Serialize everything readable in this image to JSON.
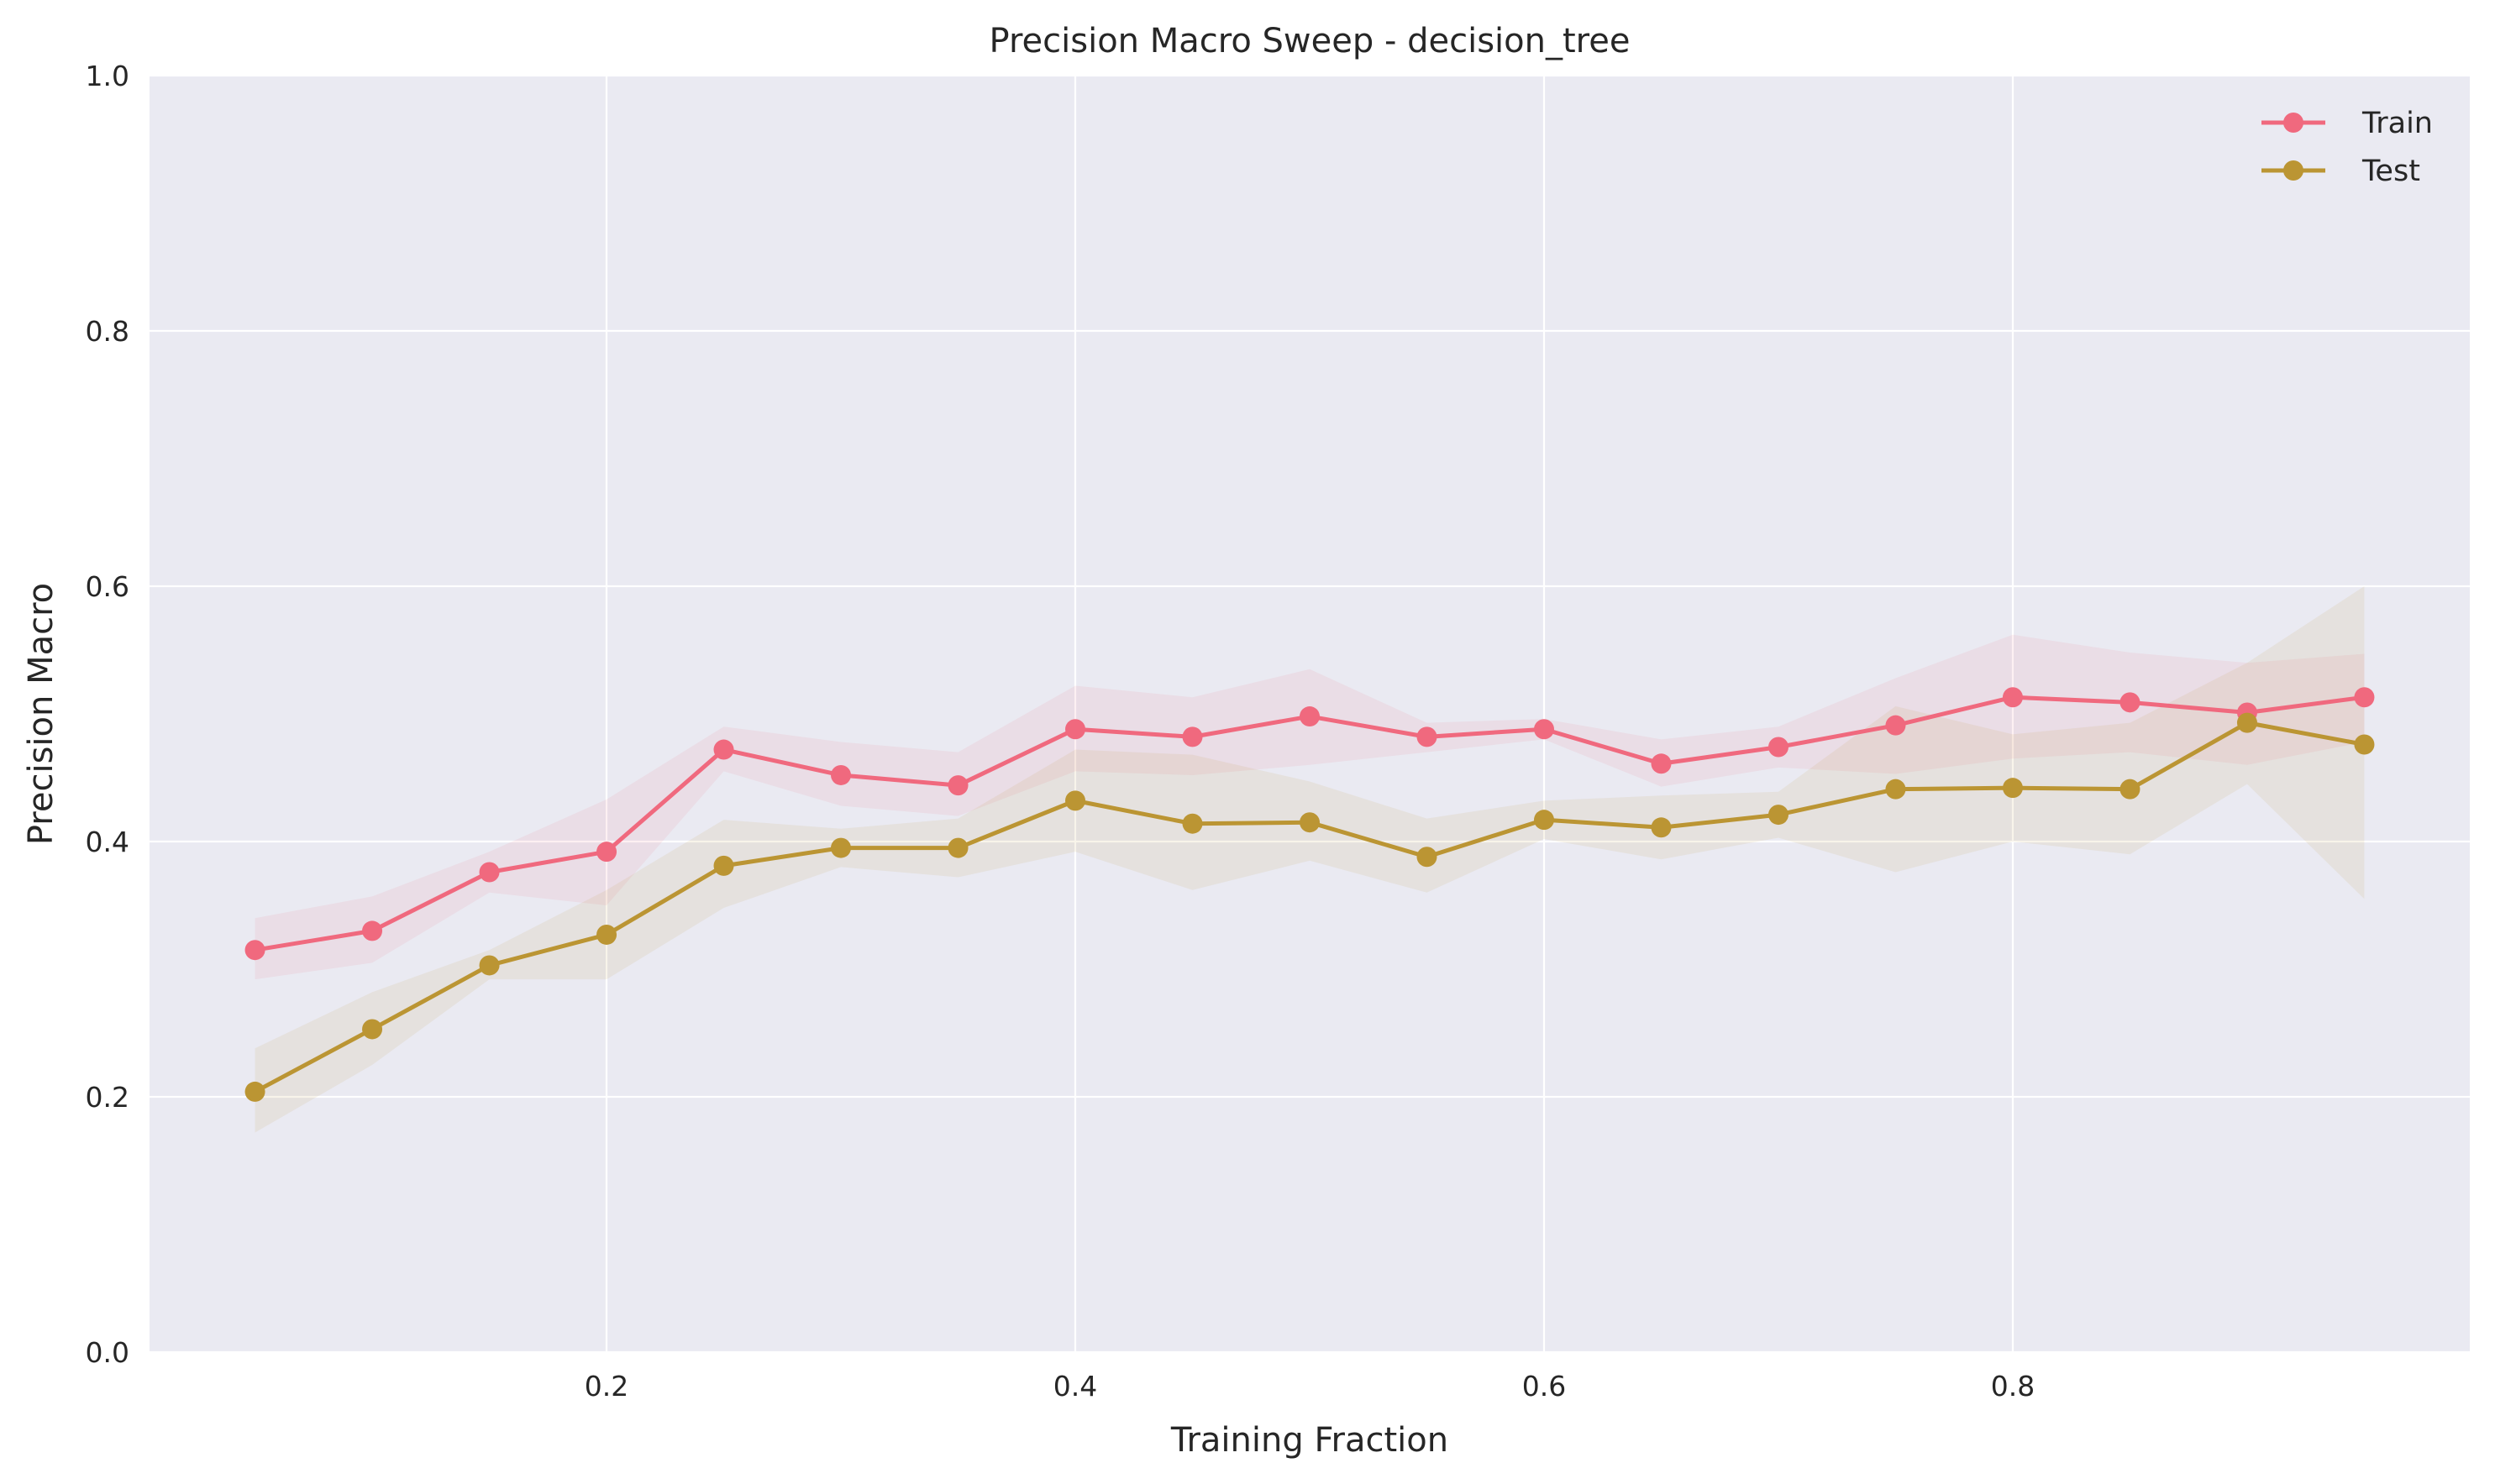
{
  "chart_data": {
    "type": "line",
    "title": "Precision Macro Sweep - decision_tree",
    "xlabel": "Training Fraction",
    "ylabel": "Precision Macro",
    "xlim": [
      0.005,
      0.995
    ],
    "ylim": [
      0.0,
      1.0
    ],
    "xticks": [
      0.2,
      0.4,
      0.6,
      0.8
    ],
    "xtick_labels": [
      "0.2",
      "0.4",
      "0.6",
      "0.8"
    ],
    "yticks": [
      0.0,
      0.2,
      0.4,
      0.6,
      0.8,
      1.0
    ],
    "ytick_labels": [
      "0.0",
      "0.2",
      "0.4",
      "0.6",
      "0.8",
      "1.0"
    ],
    "grid": true,
    "background": "#eaeaf2",
    "legend_position": "top-right",
    "x": [
      0.05,
      0.1,
      0.15,
      0.2,
      0.25,
      0.3,
      0.35,
      0.4,
      0.45,
      0.5,
      0.55,
      0.6,
      0.65,
      0.7,
      0.75,
      0.8,
      0.85,
      0.9,
      0.95
    ],
    "series": [
      {
        "name": "Train",
        "color": "#f0697e",
        "values": [
          0.315,
          0.33,
          0.376,
          0.392,
          0.472,
          0.452,
          0.444,
          0.488,
          0.482,
          0.498,
          0.482,
          0.488,
          0.461,
          0.474,
          0.491,
          0.513,
          0.509,
          0.501,
          0.513
        ],
        "band_lower": [
          0.292,
          0.305,
          0.36,
          0.35,
          0.455,
          0.428,
          0.42,
          0.455,
          0.452,
          0.46,
          0.47,
          0.48,
          0.443,
          0.458,
          0.453,
          0.465,
          0.47,
          0.46,
          0.478
        ],
        "band_upper": [
          0.34,
          0.357,
          0.392,
          0.433,
          0.49,
          0.478,
          0.47,
          0.522,
          0.513,
          0.535,
          0.493,
          0.496,
          0.48,
          0.49,
          0.528,
          0.562,
          0.548,
          0.54,
          0.547
        ]
      },
      {
        "name": "Test",
        "color": "#bb9533",
        "values": [
          0.204,
          0.253,
          0.303,
          0.327,
          0.381,
          0.395,
          0.395,
          0.432,
          0.414,
          0.415,
          0.388,
          0.417,
          0.411,
          0.421,
          0.441,
          0.442,
          0.441,
          0.493,
          0.476
        ],
        "band_lower": [
          0.172,
          0.225,
          0.292,
          0.292,
          0.348,
          0.38,
          0.372,
          0.392,
          0.362,
          0.385,
          0.36,
          0.402,
          0.386,
          0.403,
          0.376,
          0.4,
          0.39,
          0.445,
          0.355
        ],
        "band_upper": [
          0.238,
          0.282,
          0.315,
          0.362,
          0.417,
          0.41,
          0.418,
          0.472,
          0.468,
          0.447,
          0.418,
          0.432,
          0.436,
          0.439,
          0.506,
          0.484,
          0.493,
          0.54,
          0.6
        ]
      }
    ]
  }
}
